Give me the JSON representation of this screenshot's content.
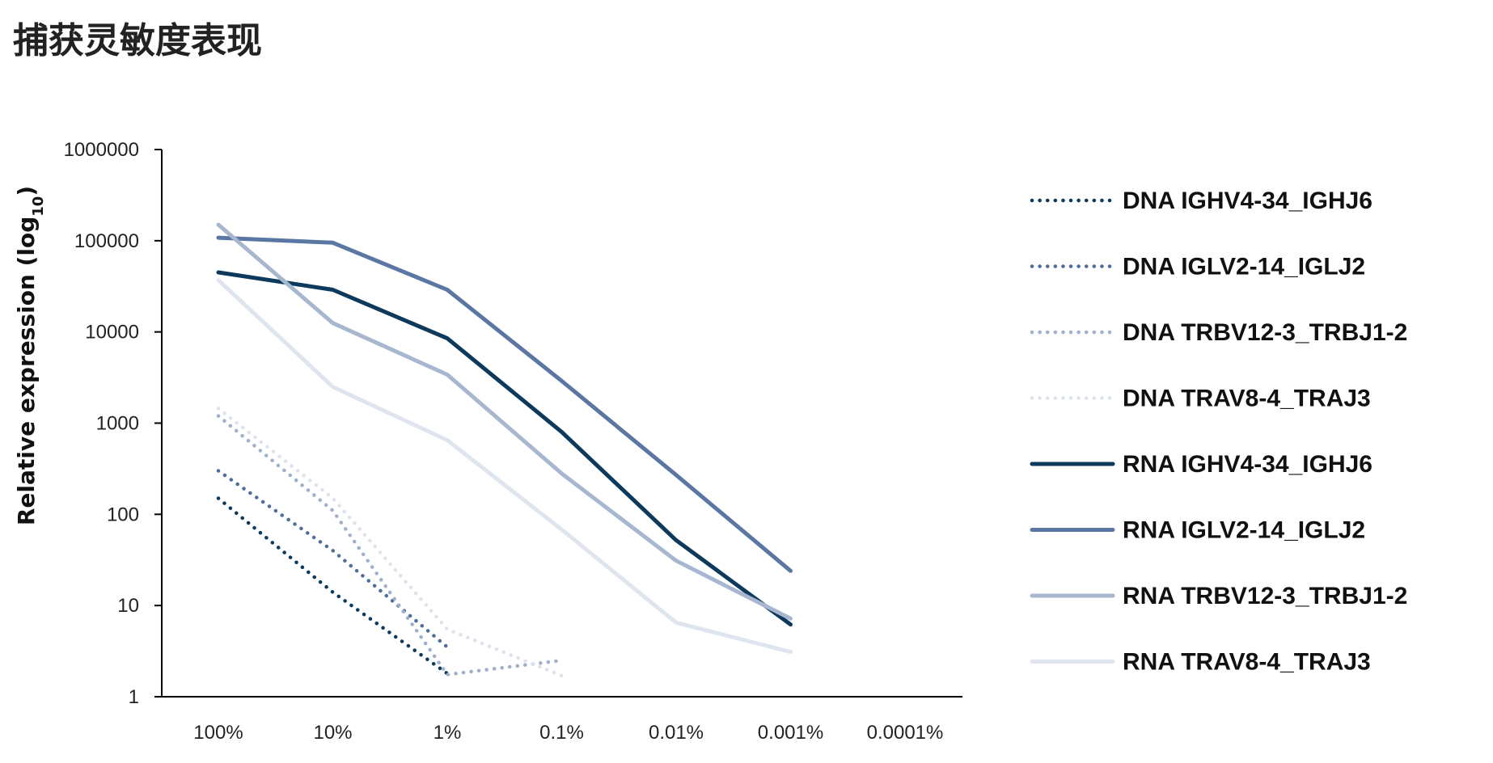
{
  "title": "捕获灵敏度表现",
  "chart_data": {
    "type": "line",
    "title": "捕获灵敏度表现",
    "ylabel": "Relative expression (log10)",
    "ylabel_main": "Relative expression (log",
    "ylabel_sub": "10",
    "ylabel_close": ")",
    "yscale": "log",
    "ylim": [
      1,
      1000000
    ],
    "yticks": [
      1,
      10,
      100,
      1000,
      10000,
      100000,
      1000000
    ],
    "ytick_labels": [
      "1",
      "10",
      "100",
      "1000",
      "10000",
      "100000",
      "1000000"
    ],
    "categories": [
      "100%",
      "10%",
      "1%",
      "0.1%",
      "0.01%",
      "0.001%",
      "0.0001%"
    ],
    "grid": false,
    "legend_position": "right",
    "series": [
      {
        "name": "DNA IGHV4-34_IGHJ6",
        "style": "dotted",
        "color": "#0d3a5c",
        "values": [
          150,
          14,
          1.8,
          null,
          null,
          null,
          null
        ]
      },
      {
        "name": "DNA IGLV2-14_IGLJ2",
        "style": "dotted",
        "color": "#4e6f9a",
        "values": [
          300,
          40,
          3.5,
          null,
          null,
          null,
          null
        ]
      },
      {
        "name": "DNA TRBV12-3_TRBJ1-2",
        "style": "dotted",
        "color": "#9fb0cb",
        "values": [
          1200,
          110,
          1.75,
          2.5,
          null,
          null,
          null
        ]
      },
      {
        "name": "DNA TRAV8-4_TRAJ3",
        "style": "dotted",
        "color": "#dde3ee",
        "values": [
          1450,
          150,
          5.5,
          1.7,
          null,
          null,
          null
        ]
      },
      {
        "name": "RNA IGHV4-34_IGHJ6",
        "style": "solid",
        "color": "#0d3a5c",
        "values": [
          45000,
          29000,
          8500,
          800,
          52,
          6.2,
          null
        ]
      },
      {
        "name": "RNA IGLV2-14_IGLJ2",
        "style": "solid",
        "color": "#5a76a2",
        "values": [
          108000,
          95000,
          29000,
          2900,
          270,
          24,
          null
        ]
      },
      {
        "name": "RNA TRBV12-3_TRBJ1-2",
        "style": "solid",
        "color": "#a8b7d0",
        "values": [
          150000,
          12500,
          3400,
          280,
          31,
          7.2,
          null
        ]
      },
      {
        "name": "RNA TRAV8-4_TRAJ3",
        "style": "solid",
        "color": "#dfe5ef",
        "values": [
          37000,
          2500,
          650,
          68,
          6.5,
          3.1,
          null
        ]
      }
    ]
  }
}
